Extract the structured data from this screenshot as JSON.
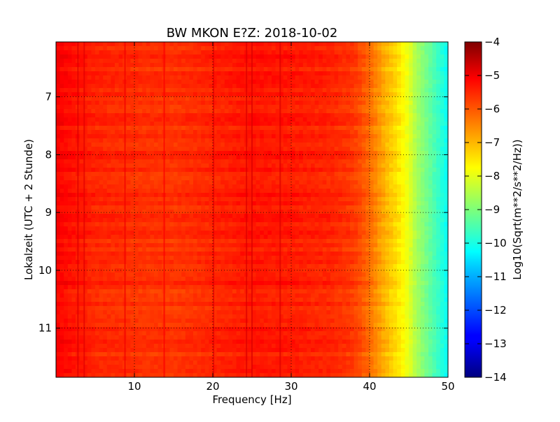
{
  "chart_data": {
    "type": "heatmap",
    "title": "BW MKON E?Z: 2018-10-02",
    "xlabel": "Frequency [Hz]",
    "ylabel": "Lokalzeit (UTC + 2 Stunde)",
    "colorbar_label": "Log10(Sqrt(m**2/s**2/Hz))",
    "xlim": [
      0,
      50
    ],
    "ylim": [
      11.85,
      6.05
    ],
    "y_axis_inverted": true,
    "x_ticks": [
      10,
      20,
      30,
      40,
      50
    ],
    "x_tick_labels": [
      "10",
      "20",
      "30",
      "40",
      "50"
    ],
    "y_ticks": [
      7,
      8,
      9,
      10,
      11
    ],
    "y_tick_labels": [
      "7",
      "8",
      "9",
      "10",
      "11"
    ],
    "colorbar_range": [
      -14,
      -4
    ],
    "colorbar_ticks": [
      -4,
      -5,
      -6,
      -7,
      -8,
      -9,
      -10,
      -11,
      -12,
      -13,
      -14
    ],
    "colorbar_tick_labels": [
      "−4",
      "−5",
      "−6",
      "−7",
      "−8",
      "−9",
      "−10",
      "−11",
      "−12",
      "−13",
      "−14"
    ],
    "colormap": "jet",
    "grid": "dotted",
    "frequency_profile": {
      "frequency_hz": [
        0,
        2,
        5,
        10,
        15,
        20,
        25,
        30,
        35,
        38,
        40,
        42,
        44,
        45,
        46,
        48,
        50
      ],
      "log10_amplitude": [
        -5.2,
        -5.4,
        -5.6,
        -5.7,
        -5.75,
        -5.6,
        -5.45,
        -5.5,
        -5.6,
        -5.8,
        -6.3,
        -7.0,
        -7.6,
        -8.0,
        -8.6,
        -9.4,
        -10.2
      ]
    },
    "spectral_lines_hz": [
      2.8,
      3.6,
      8.8,
      13.8,
      20.1,
      24.3,
      25.0,
      28.6
    ]
  }
}
